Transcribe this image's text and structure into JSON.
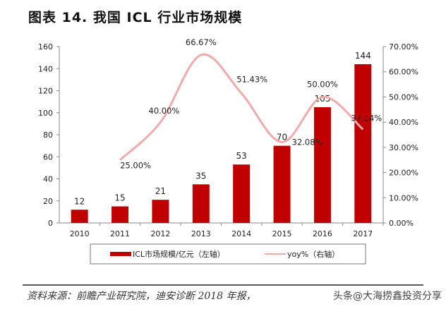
{
  "title": "图表 14. 我国 ICL 行业市场规模",
  "source": "资料来源：前瞻产业研究院，迪安诊断 2018 年报，",
  "watermark": "头条@大海捞鑫投资分享",
  "chart_data": {
    "type": "bar+line",
    "categories": [
      "2010",
      "2011",
      "2012",
      "2013",
      "2014",
      "2015",
      "2016",
      "2017"
    ],
    "series": [
      {
        "name": "ICL市场规模/亿元（左轴）",
        "type": "bar",
        "axis": "left",
        "color": "#c00000",
        "values": [
          12,
          15,
          21,
          35,
          53,
          70,
          105,
          144
        ]
      },
      {
        "name": "yoy%（右轴）",
        "type": "line",
        "axis": "right",
        "color": "#f2aaaa",
        "values": [
          null,
          25.0,
          40.0,
          66.67,
          51.43,
          32.08,
          50.0,
          37.14
        ],
        "labels": [
          "",
          "25.00%",
          "40.00%",
          "66.67%",
          "51.43%",
          "32.08%",
          "50.00%",
          "37.14%"
        ]
      }
    ],
    "ylim_left": [
      0,
      160
    ],
    "yticks_left": [
      "0",
      "20",
      "40",
      "60",
      "80",
      "100",
      "120",
      "140",
      "160"
    ],
    "ylim_right": [
      0,
      70
    ],
    "yticks_right": [
      "0.00%",
      "10.00%",
      "20.00%",
      "30.00%",
      "40.00%",
      "50.00%",
      "60.00%",
      "70.00%"
    ],
    "grid": false,
    "legend": "bottom"
  }
}
